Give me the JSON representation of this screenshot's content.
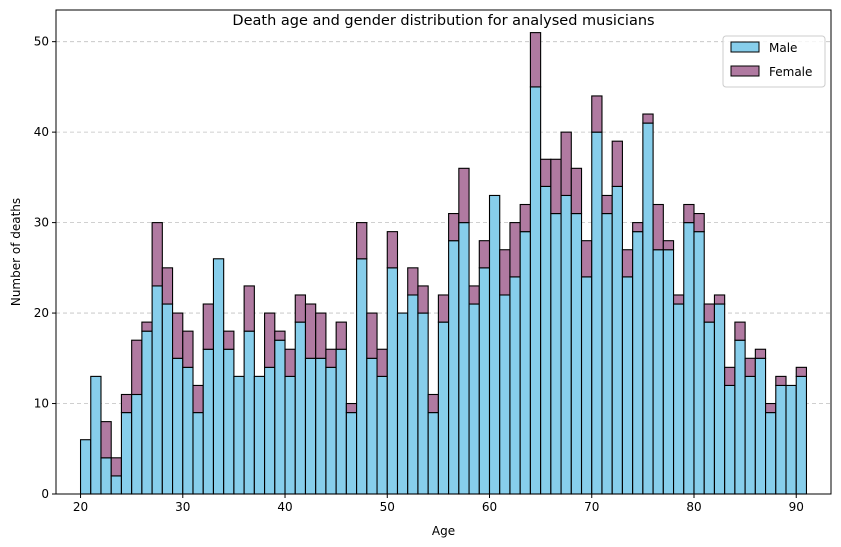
{
  "chart_data": {
    "type": "bar",
    "stacked": true,
    "title": "Death age and gender distribution for analysed musicians",
    "xlabel": "Age",
    "ylabel": "Number of deaths",
    "x": [
      20,
      21,
      22,
      23,
      24,
      25,
      26,
      27,
      28,
      29,
      30,
      31,
      32,
      33,
      34,
      35,
      36,
      37,
      38,
      39,
      40,
      41,
      42,
      43,
      44,
      45,
      46,
      47,
      48,
      49,
      50,
      51,
      52,
      53,
      54,
      55,
      56,
      57,
      58,
      59,
      60,
      61,
      62,
      63,
      64,
      65,
      66,
      67,
      68,
      69,
      70,
      71,
      72,
      73,
      74,
      75,
      76,
      77,
      78,
      79,
      80,
      81,
      82,
      83,
      84,
      85,
      86,
      87,
      88,
      89,
      90
    ],
    "series": [
      {
        "name": "Male",
        "color": "#87ceeb",
        "values": [
          6,
          13,
          4,
          2,
          9,
          11,
          18,
          23,
          21,
          15,
          14,
          9,
          16,
          26,
          16,
          13,
          18,
          13,
          14,
          17,
          13,
          19,
          15,
          15,
          14,
          16,
          9,
          26,
          15,
          13,
          25,
          20,
          22,
          20,
          9,
          19,
          28,
          30,
          21,
          25,
          33,
          22,
          24,
          29,
          45,
          34,
          31,
          33,
          31,
          24,
          40,
          31,
          34,
          24,
          29,
          41,
          27,
          27,
          21,
          30,
          29,
          19,
          21,
          12,
          17,
          13,
          15,
          9,
          12,
          12,
          13
        ]
      },
      {
        "name": "Female",
        "color": "#b07aa1",
        "values": [
          0,
          0,
          4,
          2,
          2,
          6,
          1,
          7,
          4,
          5,
          4,
          3,
          5,
          0,
          2,
          0,
          5,
          0,
          6,
          1,
          3,
          3,
          6,
          5,
          2,
          3,
          1,
          4,
          5,
          3,
          4,
          0,
          3,
          3,
          2,
          3,
          3,
          6,
          2,
          3,
          0,
          5,
          6,
          3,
          6,
          3,
          6,
          7,
          5,
          4,
          4,
          2,
          5,
          3,
          1,
          1,
          5,
          1,
          1,
          2,
          2,
          2,
          1,
          2,
          2,
          2,
          1,
          1,
          1,
          0,
          1
        ]
      }
    ],
    "xlim": [
      17.6,
      93.4
    ],
    "ylim": [
      0,
      53.5
    ],
    "xticks": [
      20,
      30,
      40,
      50,
      60,
      70,
      80,
      90
    ],
    "yticks": [
      0,
      10,
      20,
      30,
      40,
      50
    ],
    "grid": "horizontal-dashed",
    "legend_position": "top-right",
    "edge_color": "#000000",
    "grid_color": "#c0c0c0"
  }
}
